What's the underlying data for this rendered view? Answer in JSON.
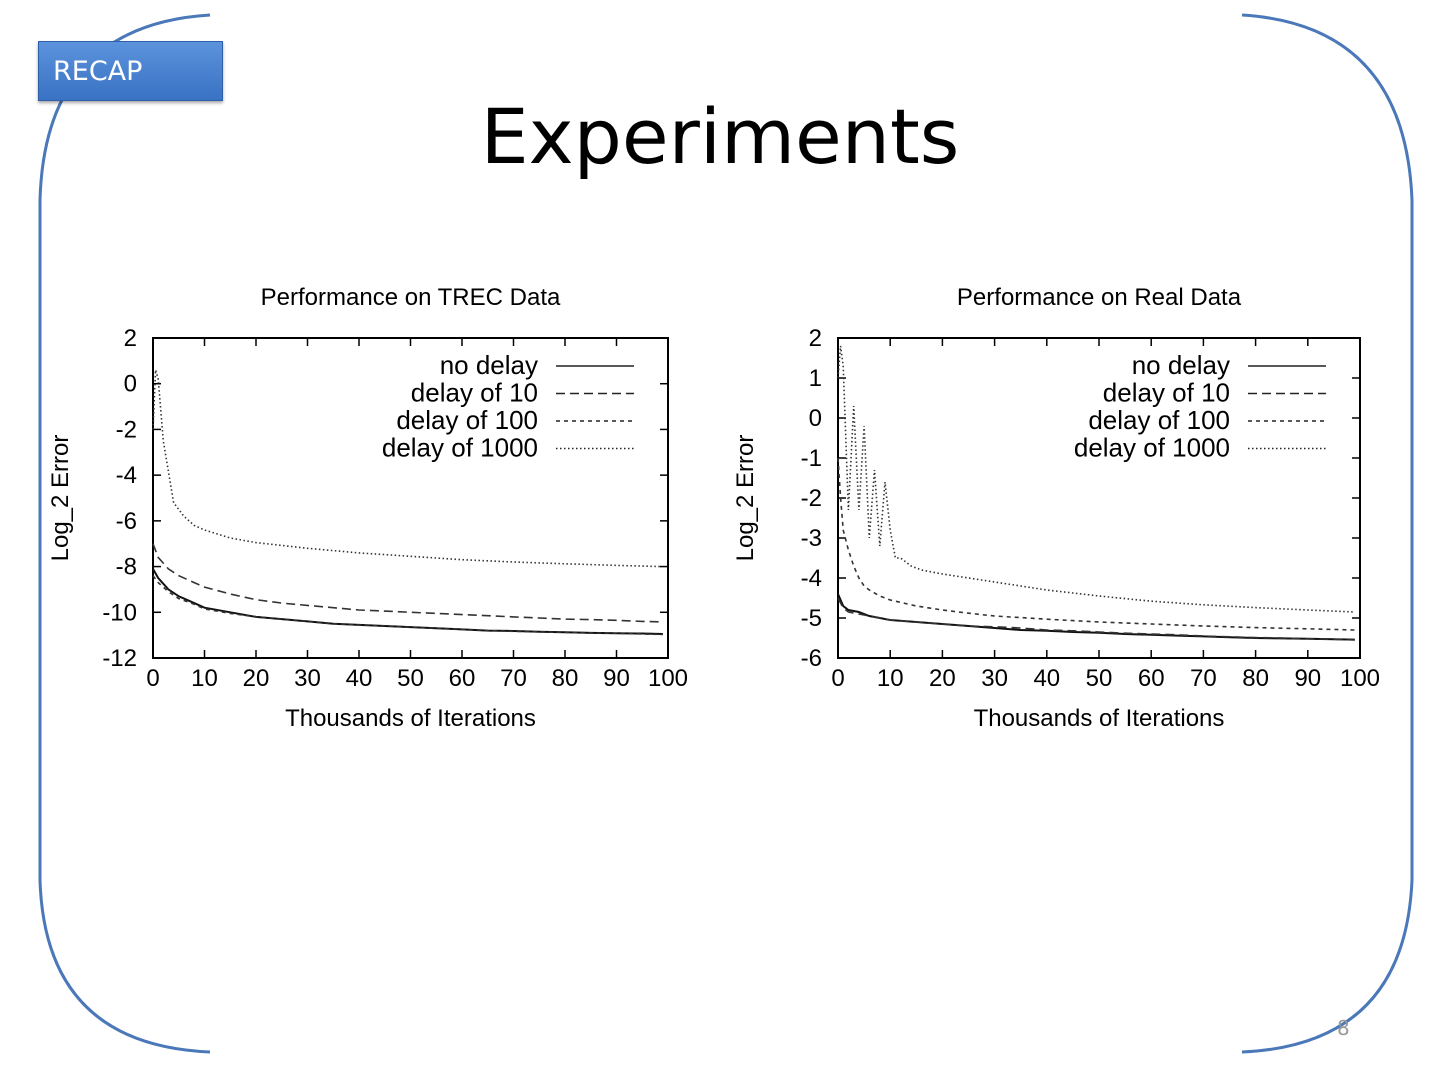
{
  "badge": "RECAP",
  "title": "Experiments",
  "page_number": "8",
  "chart_data": [
    {
      "type": "line",
      "title": "Performance on TREC Data",
      "xlabel": "Thousands of Iterations",
      "ylabel": "Log_2 Error",
      "xlim": [
        0,
        100
      ],
      "ylim": [
        -12,
        2
      ],
      "xticks": [
        0,
        10,
        20,
        30,
        40,
        50,
        60,
        70,
        80,
        90,
        100
      ],
      "yticks": [
        2,
        0,
        -2,
        -4,
        -6,
        -8,
        -10,
        -12
      ],
      "legend_position": "top-right",
      "series": [
        {
          "name": "no delay",
          "style": "solid",
          "x": [
            0,
            1,
            3,
            5,
            8,
            10,
            15,
            20,
            25,
            30,
            35,
            40,
            45,
            50,
            55,
            60,
            65,
            70,
            75,
            80,
            85,
            90,
            95,
            99
          ],
          "y": [
            -8.1,
            -8.5,
            -9.0,
            -9.3,
            -9.6,
            -9.8,
            -10.0,
            -10.2,
            -10.3,
            -10.4,
            -10.5,
            -10.55,
            -10.6,
            -10.65,
            -10.7,
            -10.75,
            -10.8,
            -10.82,
            -10.85,
            -10.87,
            -10.9,
            -10.92,
            -10.93,
            -10.95
          ]
        },
        {
          "name": "delay of 10",
          "style": "dashed",
          "x": [
            0,
            1,
            3,
            5,
            8,
            10,
            15,
            20,
            25,
            30,
            35,
            40,
            45,
            50,
            55,
            60,
            65,
            70,
            75,
            80,
            85,
            90,
            95,
            99
          ],
          "y": [
            -7.0,
            -7.6,
            -8.1,
            -8.4,
            -8.7,
            -8.9,
            -9.2,
            -9.45,
            -9.6,
            -9.7,
            -9.8,
            -9.9,
            -9.95,
            -10.0,
            -10.05,
            -10.1,
            -10.15,
            -10.2,
            -10.25,
            -10.3,
            -10.32,
            -10.35,
            -10.4,
            -10.42
          ]
        },
        {
          "name": "delay of 100",
          "style": "dotted",
          "x": [
            0,
            1,
            3,
            5,
            8,
            10,
            15,
            20,
            25,
            30,
            35,
            40,
            45,
            50,
            55,
            60,
            65,
            70,
            75,
            80,
            85,
            90,
            95,
            99
          ],
          "y": [
            -8.4,
            -8.7,
            -9.1,
            -9.4,
            -9.65,
            -9.85,
            -10.05,
            -10.2,
            -10.3,
            -10.4,
            -10.5,
            -10.55,
            -10.6,
            -10.65,
            -10.7,
            -10.75,
            -10.8,
            -10.83,
            -10.86,
            -10.88,
            -10.9,
            -10.92,
            -10.95,
            -10.97
          ]
        },
        {
          "name": "delay of 1000",
          "style": "fine-dotted",
          "x": [
            0,
            0.5,
            1,
            2,
            4,
            6,
            8,
            10,
            15,
            20,
            30,
            40,
            50,
            60,
            70,
            80,
            90,
            99
          ],
          "y": [
            -2.0,
            0.6,
            0.2,
            -2.5,
            -5.2,
            -5.8,
            -6.2,
            -6.4,
            -6.75,
            -6.95,
            -7.2,
            -7.4,
            -7.55,
            -7.7,
            -7.8,
            -7.88,
            -7.95,
            -8.0
          ]
        }
      ]
    },
    {
      "type": "line",
      "title": "Performance on Real Data",
      "xlabel": "Thousands of Iterations",
      "ylabel": "Log_2 Error",
      "xlim": [
        0,
        100
      ],
      "ylim": [
        -6,
        2
      ],
      "xticks": [
        0,
        10,
        20,
        30,
        40,
        50,
        60,
        70,
        80,
        90,
        100
      ],
      "yticks": [
        2,
        1,
        0,
        -1,
        -2,
        -3,
        -4,
        -5,
        -6
      ],
      "legend_position": "top-right",
      "series": [
        {
          "name": "no delay",
          "style": "solid",
          "x": [
            0,
            1,
            2,
            4,
            6,
            8,
            10,
            15,
            20,
            25,
            30,
            35,
            40,
            45,
            50,
            55,
            60,
            65,
            70,
            75,
            80,
            85,
            90,
            95,
            99
          ],
          "y": [
            -4.4,
            -4.7,
            -4.8,
            -4.85,
            -4.95,
            -5.0,
            -5.05,
            -5.1,
            -5.15,
            -5.2,
            -5.25,
            -5.3,
            -5.32,
            -5.35,
            -5.37,
            -5.4,
            -5.42,
            -5.44,
            -5.46,
            -5.48,
            -5.5,
            -5.51,
            -5.52,
            -5.53,
            -5.54
          ]
        },
        {
          "name": "delay of 10",
          "style": "dashed",
          "x": [
            0,
            1,
            2,
            4,
            6,
            8,
            10,
            15,
            20,
            25,
            30,
            35,
            40,
            45,
            50,
            55,
            60,
            65,
            70,
            75,
            80,
            85,
            90,
            95,
            99
          ],
          "y": [
            -4.5,
            -4.75,
            -4.85,
            -4.9,
            -4.95,
            -5.0,
            -5.05,
            -5.1,
            -5.15,
            -5.2,
            -5.22,
            -5.25,
            -5.3,
            -5.32,
            -5.35,
            -5.38,
            -5.4,
            -5.42,
            -5.45,
            -5.47,
            -5.49,
            -5.5,
            -5.52,
            -5.53,
            -5.55
          ]
        },
        {
          "name": "delay of 100",
          "style": "dotted",
          "x": [
            0,
            0.5,
            1,
            2,
            3,
            4,
            5,
            6,
            8,
            10,
            15,
            20,
            25,
            30,
            40,
            50,
            60,
            70,
            80,
            90,
            99
          ],
          "y": [
            -1.0,
            -2.0,
            -2.8,
            -3.3,
            -3.7,
            -4.0,
            -4.2,
            -4.3,
            -4.45,
            -4.55,
            -4.7,
            -4.8,
            -4.88,
            -4.95,
            -5.03,
            -5.1,
            -5.15,
            -5.2,
            -5.24,
            -5.27,
            -5.3
          ]
        },
        {
          "name": "delay of 1000",
          "style": "fine-dotted",
          "x": [
            0,
            0.5,
            1,
            2,
            3,
            4,
            5,
            6,
            7,
            8,
            9,
            10,
            11,
            12,
            14,
            16,
            20,
            30,
            40,
            50,
            60,
            70,
            80,
            90,
            99
          ],
          "y": [
            1.0,
            1.8,
            1.3,
            -2.3,
            0.3,
            -2.3,
            -0.2,
            -3.0,
            -1.3,
            -3.2,
            -1.6,
            -2.8,
            -3.5,
            -3.5,
            -3.7,
            -3.8,
            -3.9,
            -4.1,
            -4.3,
            -4.45,
            -4.58,
            -4.67,
            -4.74,
            -4.8,
            -4.85
          ]
        }
      ]
    }
  ]
}
